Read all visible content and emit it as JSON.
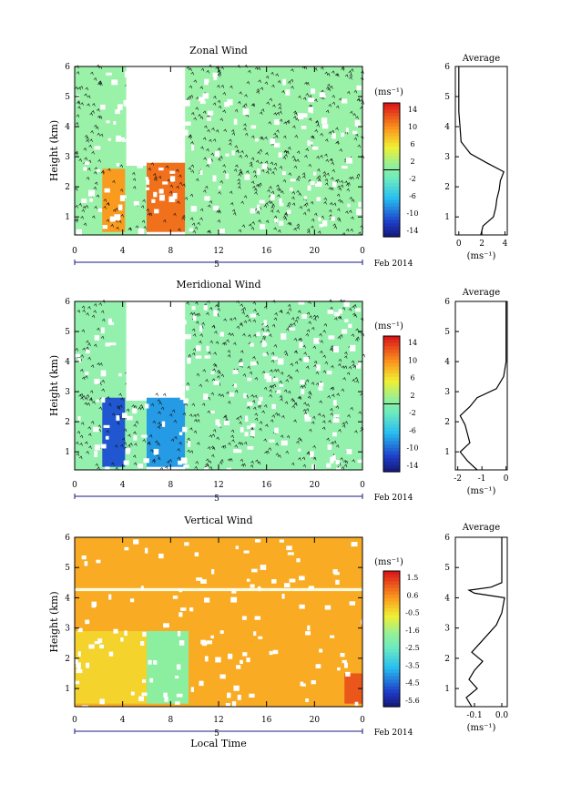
{
  "figure": {
    "x_axis_label": "Local Time",
    "date_label": "Feb 2014",
    "day_label": "5",
    "avg_title": "Average",
    "unit_label": "(ms⁻¹)",
    "y_axis_label": "Height (km)"
  },
  "chart_data": [
    {
      "type": "heatmap",
      "title": "Zonal Wind",
      "ylabel": "Height (km)",
      "xlabel": "Local Time",
      "x_ticks": [
        "0",
        "4",
        "8",
        "12",
        "16",
        "20",
        "0"
      ],
      "x_range": [
        0,
        24
      ],
      "y_ticks": [
        "1",
        "2",
        "3",
        "4",
        "5",
        "6"
      ],
      "y_range": [
        0.4,
        6
      ],
      "colorbar": {
        "unit": "(ms⁻¹)",
        "ticks": [
          "14",
          "10",
          "6",
          "2",
          "-2",
          "-6",
          "-10",
          "-14"
        ],
        "range": [
          -16,
          16
        ]
      },
      "features": [
        {
          "t": [
            2.3,
            4.2
          ],
          "h": [
            0.5,
            2.6
          ],
          "value": 10
        },
        {
          "t": [
            6.0,
            9.2
          ],
          "h": [
            0.5,
            2.8
          ],
          "value": 12
        },
        {
          "t": [
            9.2,
            24
          ],
          "h": [
            0.5,
            6.0
          ],
          "value": 1
        }
      ],
      "profile": {
        "title": "Average",
        "xlabel": "(ms⁻¹)",
        "x_ticks": [
          "0",
          "2",
          "4"
        ],
        "x_range": [
          -0.3,
          4.2
        ],
        "h": [
          0.4,
          0.7,
          1.0,
          1.3,
          1.6,
          1.9,
          2.2,
          2.5,
          2.8,
          3.1,
          3.5,
          4.0,
          4.5,
          5.0,
          5.5,
          6.0
        ],
        "x": [
          1.9,
          2.1,
          3.0,
          3.2,
          3.3,
          3.5,
          3.6,
          3.9,
          2.4,
          1.0,
          0.2,
          0.1,
          0.0,
          0.0,
          0.0,
          0.0
        ]
      }
    },
    {
      "type": "heatmap",
      "title": "Meridional Wind",
      "ylabel": "Height (km)",
      "xlabel": "Local Time",
      "x_ticks": [
        "0",
        "4",
        "8",
        "12",
        "16",
        "20",
        "0"
      ],
      "x_range": [
        0,
        24
      ],
      "y_ticks": [
        "1",
        "2",
        "3",
        "4",
        "5",
        "6"
      ],
      "y_range": [
        0.4,
        6
      ],
      "colorbar": {
        "unit": "(ms⁻¹)",
        "ticks": [
          "14",
          "10",
          "6",
          "2",
          "-2",
          "-6",
          "-10",
          "-14"
        ],
        "range": [
          -16,
          16
        ]
      },
      "features": [
        {
          "t": [
            2.3,
            4.2
          ],
          "h": [
            0.5,
            2.8
          ],
          "value": -11
        },
        {
          "t": [
            6.0,
            9.2
          ],
          "h": [
            0.5,
            2.8
          ],
          "value": -8
        },
        {
          "t": [
            9.2,
            24
          ],
          "h": [
            0.5,
            6.0
          ],
          "value": 0.5
        }
      ],
      "profile": {
        "title": "Average",
        "xlabel": "(ms⁻¹)",
        "x_ticks": [
          "-2",
          "-1",
          "0"
        ],
        "x_range": [
          -2.1,
          0.05
        ],
        "h": [
          0.4,
          0.7,
          1.0,
          1.3,
          1.6,
          1.9,
          2.2,
          2.5,
          2.8,
          3.1,
          3.5,
          4.0,
          4.5,
          5.0,
          5.5,
          6.0
        ],
        "x": [
          -1.2,
          -1.6,
          -1.9,
          -1.5,
          -1.6,
          -1.7,
          -1.9,
          -1.5,
          -1.2,
          -0.4,
          -0.1,
          0.0,
          0.0,
          0.0,
          0.0,
          0.0
        ]
      }
    },
    {
      "type": "heatmap",
      "title": "Vertical Wind",
      "ylabel": "Height (km)",
      "xlabel": "Local Time",
      "x_ticks": [
        "0",
        "4",
        "8",
        "12",
        "16",
        "20",
        "0"
      ],
      "x_range": [
        0,
        24
      ],
      "y_ticks": [
        "1",
        "2",
        "3",
        "4",
        "5",
        "6"
      ],
      "y_range": [
        0.4,
        6
      ],
      "colorbar": {
        "unit": "(ms⁻¹)",
        "ticks": [
          "1.5",
          "0.6",
          "-0.5",
          "-1.6",
          "-2.5",
          "-3.5",
          "-4.5",
          "-5.6"
        ],
        "range": [
          -6,
          2
        ]
      },
      "features": [
        {
          "t": [
            0,
            24
          ],
          "h": [
            0.4,
            6.0
          ],
          "value": 0.3
        },
        {
          "t": [
            0,
            6.0
          ],
          "h": [
            0.5,
            2.9
          ],
          "value": -0.2
        },
        {
          "t": [
            6.0,
            9.5
          ],
          "h": [
            0.5,
            2.9
          ],
          "value": -1.8
        },
        {
          "t": [
            22.5,
            24
          ],
          "h": [
            0.5,
            1.5
          ],
          "value": 1.3
        },
        {
          "t": [
            0,
            24
          ],
          "h": [
            4.22,
            4.32
          ],
          "value": 0.0
        }
      ],
      "profile": {
        "title": "Average",
        "xlabel": "(ms⁻¹)",
        "x_ticks": [
          "-0.1",
          "0.0"
        ],
        "x_range": [
          -0.17,
          0.02
        ],
        "h": [
          0.4,
          0.7,
          1.0,
          1.3,
          1.6,
          1.9,
          2.2,
          2.5,
          2.8,
          3.1,
          3.5,
          4.0,
          4.15,
          4.25,
          4.35,
          4.5,
          5.0,
          5.5,
          6.0
        ],
        "x": [
          -0.11,
          -0.13,
          -0.09,
          -0.12,
          -0.1,
          -0.07,
          -0.11,
          -0.08,
          -0.05,
          -0.02,
          0.0,
          0.01,
          -0.1,
          -0.12,
          -0.04,
          0.0,
          0.0,
          0.0,
          0.0
        ]
      }
    }
  ]
}
